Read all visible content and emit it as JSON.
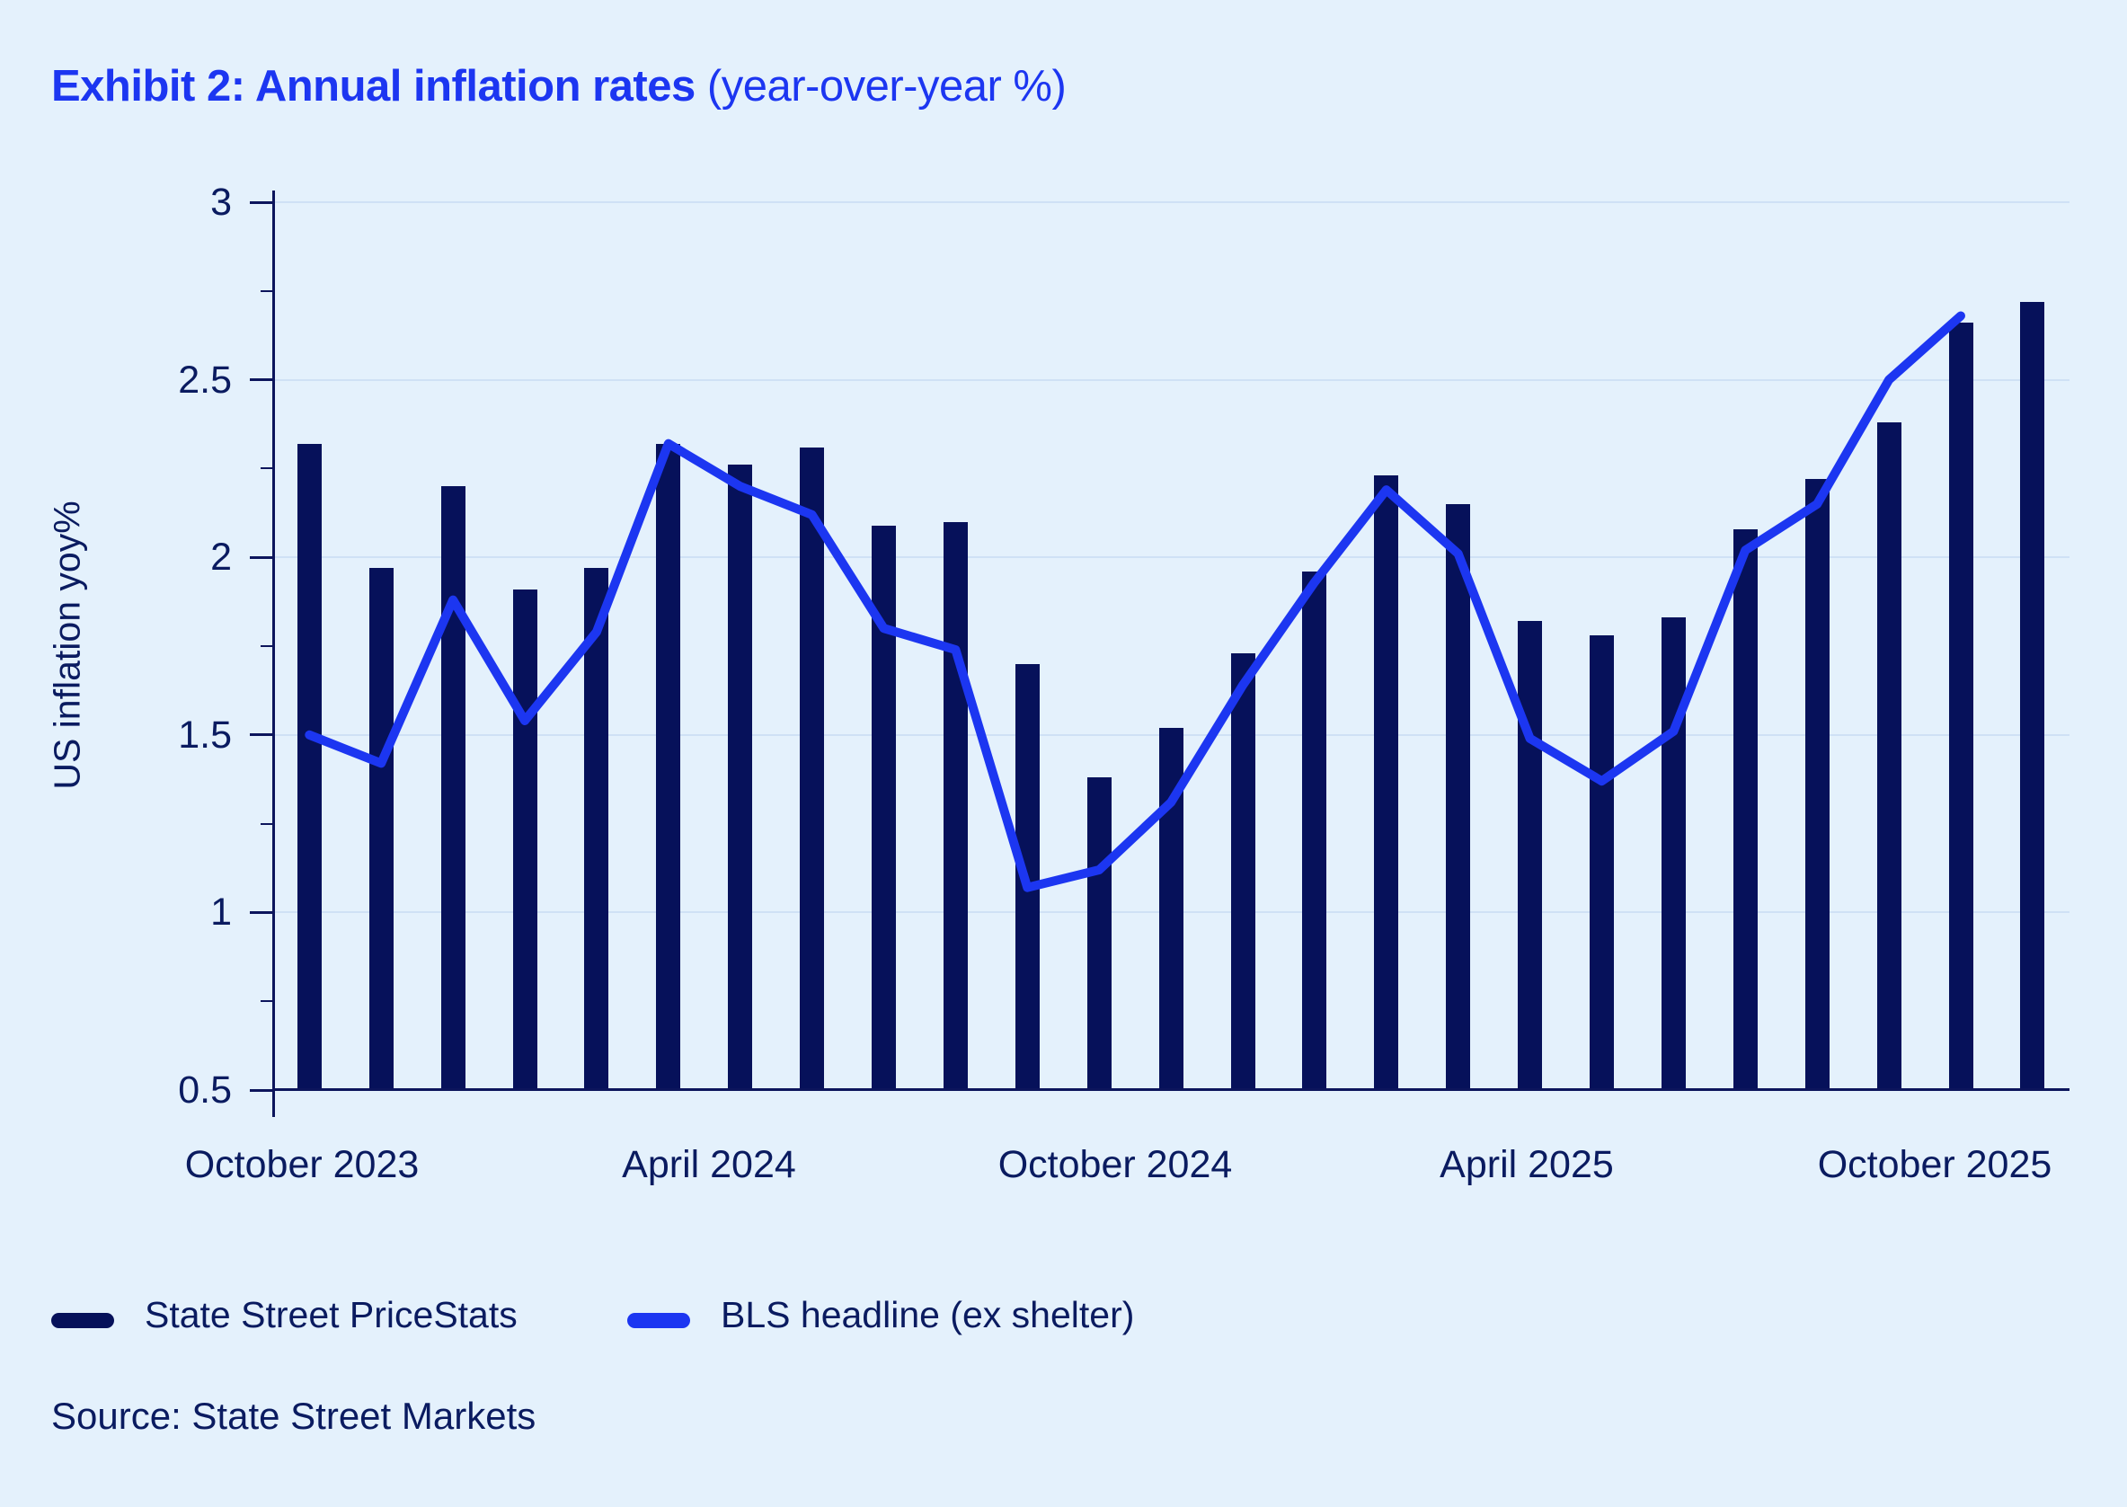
{
  "page": {
    "title_bold": "Exhibit 2: Annual inflation rates",
    "title_regular": " (year-over-year %)",
    "source": "Source: State Street Markets"
  },
  "legend": [
    {
      "label": "State Street PriceStats",
      "color": "#06115a"
    },
    {
      "label": "BLS headline (ex shelter)",
      "color": "#1c36f1"
    }
  ],
  "colors": {
    "background": "#e4f1fc",
    "bar": "#06115a",
    "line": "#1c36f1",
    "title": "#1c36f1",
    "axis": "#0c155c",
    "text": "#0a1b60",
    "gridline": "#cfe1f5"
  },
  "chart_data": {
    "type": "bar+line",
    "title": "Exhibit 2: Annual inflation rates (year-over-year %)",
    "xlabel": "",
    "ylabel": "US inflation yoy%",
    "ylim": [
      0.5,
      3
    ],
    "grid": "horizontal",
    "legend_position": "bottom-left",
    "x": [
      "Oct 2023",
      "Nov 2023",
      "Dec 2023",
      "Jan 2024",
      "Feb 2024",
      "Mar 2024",
      "Apr 2024",
      "May 2024",
      "Jun 2024",
      "Jul 2024",
      "Aug 2024",
      "Sep 2024",
      "Oct 2024",
      "Nov 2024",
      "Dec 2024",
      "Jan 2025",
      "Feb 2025",
      "Mar 2025",
      "Apr 2025",
      "May 2025",
      "Jun 2025",
      "Jul 2025",
      "Aug 2025",
      "Sep 2025",
      "Oct 2025"
    ],
    "x_tick_labels": [
      "October 2023",
      "April 2024",
      "October 2024",
      "April 2025",
      "October 2025"
    ],
    "y_ticks": [
      3,
      2.5,
      2,
      1.5,
      1,
      0.5
    ],
    "y_tick_labels": [
      "3",
      "2.5",
      "2",
      "1.5",
      "1",
      "0.5"
    ],
    "y_minor_ticks": [
      2.75,
      2.25,
      1.75,
      1.25,
      0.75
    ],
    "series": [
      {
        "name": "State Street PriceStats",
        "type": "bar",
        "color": "#06115a",
        "values": [
          2.32,
          1.97,
          2.2,
          1.91,
          1.97,
          2.32,
          2.26,
          2.31,
          2.09,
          2.1,
          1.7,
          1.38,
          1.52,
          1.73,
          1.96,
          2.23,
          2.15,
          1.82,
          1.78,
          1.83,
          2.08,
          2.22,
          2.38,
          2.66,
          2.72
        ]
      },
      {
        "name": "BLS headline (ex shelter)",
        "type": "line",
        "color": "#1c36f1",
        "values": [
          1.5,
          1.42,
          1.88,
          1.54,
          1.79,
          2.32,
          2.2,
          2.12,
          1.8,
          1.74,
          1.07,
          1.12,
          1.31,
          1.64,
          1.93,
          2.19,
          2.01,
          1.49,
          1.37,
          1.51,
          2.02,
          2.15,
          2.5,
          2.68,
          null
        ]
      }
    ]
  }
}
